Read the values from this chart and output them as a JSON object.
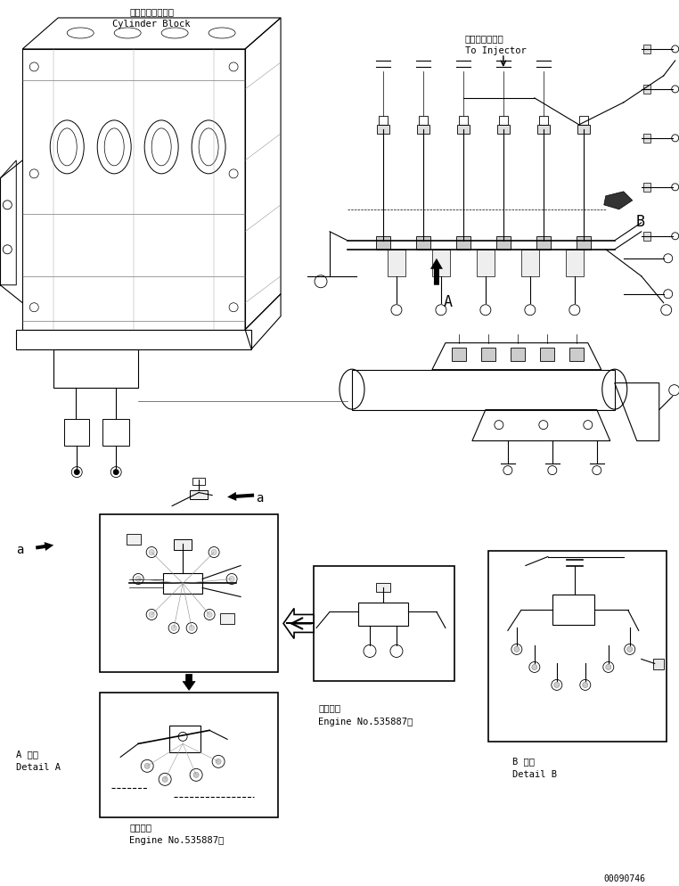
{
  "bg_color": "#ffffff",
  "line_color": "#000000",
  "fig_width": 7.62,
  "fig_height": 9.94,
  "dpi": 100,
  "labels": {
    "cylinder_block_jp": "シリンダブロック",
    "cylinder_block_en": "Cylinder Block",
    "injector_jp": "インジェクタへ",
    "injector_en": "To Injector",
    "label_A": "A",
    "label_B": "B",
    "label_a_left": "a",
    "label_a_right": "a",
    "detail_A_jp": "A 詳細",
    "detail_A_en": "Detail A",
    "detail_B_jp": "B 詳細",
    "detail_B_en": "Detail B",
    "engine_no_jp1": "適用号機",
    "engine_no_en1": "Engine No.535887～",
    "engine_no_jp2": "適用号機",
    "engine_no_en2": "Engine No.535887～",
    "page_number": "00090746"
  },
  "font_sizes": {
    "label_large": 9,
    "label_medium": 7.5,
    "label_small": 6.5,
    "page_number": 7
  }
}
